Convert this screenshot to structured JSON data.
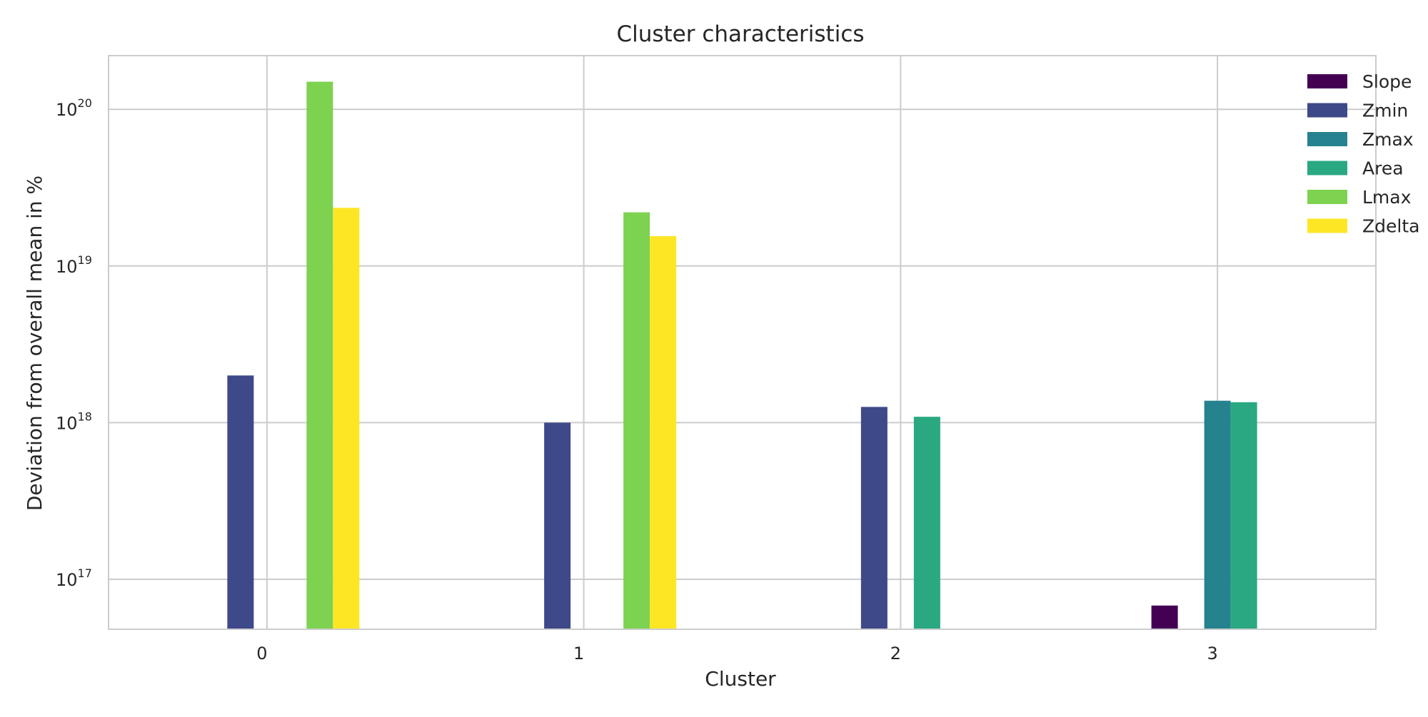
{
  "chart_data": {
    "type": "bar",
    "title": "Cluster characteristics",
    "xlabel": "Cluster",
    "ylabel": "Deviation from overall mean in %",
    "yscale": "log",
    "ylim": [
      4.8e+16,
      2.2e+20
    ],
    "yticks": [
      {
        "value": 1e+17,
        "base": "10",
        "exp": "17"
      },
      {
        "value": 1e+18,
        "base": "10",
        "exp": "18"
      },
      {
        "value": 1e+19,
        "base": "10",
        "exp": "19"
      },
      {
        "value": 1e+20,
        "base": "10",
        "exp": "20"
      }
    ],
    "categories": [
      "0",
      "1",
      "2",
      "3"
    ],
    "grid": true,
    "legend_position": "top-right",
    "series": [
      {
        "name": "Slope",
        "color": "#440154",
        "values": [
          null,
          null,
          null,
          6.8e+16
        ]
      },
      {
        "name": "Zmin",
        "color": "#3e4989",
        "values": [
          2e+18,
          1e+18,
          1.26e+18,
          null
        ]
      },
      {
        "name": "Zmax",
        "color": "#26828e",
        "values": [
          null,
          null,
          null,
          1.38e+18
        ]
      },
      {
        "name": "Area",
        "color": "#2aa882",
        "values": [
          null,
          null,
          1.09e+18,
          1.35e+18
        ]
      },
      {
        "name": "Lmax",
        "color": "#7dd250",
        "values": [
          1.5e+20,
          2.2e+19,
          null,
          null
        ]
      },
      {
        "name": "Zdelta",
        "color": "#fde725",
        "values": [
          2.35e+19,
          1.55e+19,
          null,
          null
        ]
      }
    ]
  }
}
